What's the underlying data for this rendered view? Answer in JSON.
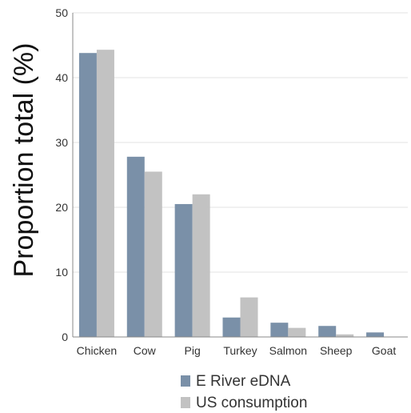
{
  "chart_data": {
    "type": "bar",
    "title": "",
    "xlabel": "",
    "ylabel": "Proportion total (%)",
    "ylim": [
      0,
      50
    ],
    "yticks": [
      0,
      10,
      20,
      30,
      40,
      50
    ],
    "grid": true,
    "legend_position": "bottom",
    "categories": [
      "Chicken",
      "Cow",
      "Pig",
      "Turkey",
      "Salmon",
      "Sheep",
      "Goat"
    ],
    "series": [
      {
        "name": "E River eDNA",
        "color": "#7a90a8",
        "values": [
          43.8,
          27.8,
          20.5,
          3.0,
          2.2,
          1.7,
          0.7
        ]
      },
      {
        "name": "US consumption",
        "color": "#c2c2c2",
        "values": [
          44.3,
          25.5,
          22.0,
          6.1,
          1.4,
          0.4,
          0.0
        ]
      }
    ]
  }
}
